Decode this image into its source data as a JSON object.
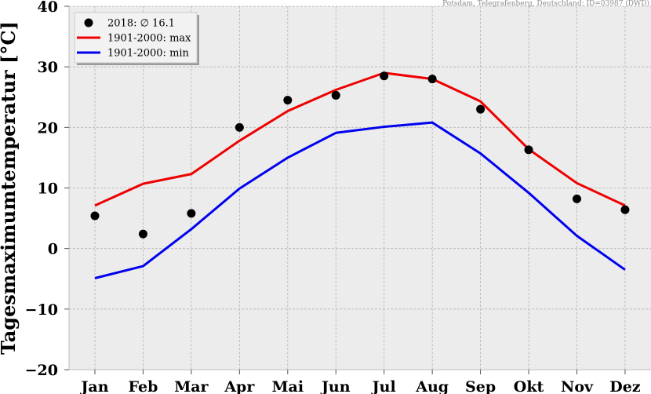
{
  "source_note": "Potsdam, Telegrafenberg, Deutschland: ID=03987 (DWD)",
  "colors": {
    "background": "#ececec",
    "max_line": "#ee0000",
    "min_line": "#0000ee",
    "points": "#000000",
    "grid": "#b4b4b4"
  },
  "chart_data": {
    "type": "line",
    "ylabel": "Tagesmaximumtemperatur [°C]",
    "categories": [
      "Jan",
      "Feb",
      "Mar",
      "Apr",
      "Mai",
      "Jun",
      "Jul",
      "Aug",
      "Sep",
      "Okt",
      "Nov",
      "Dez"
    ],
    "ylim": [
      -20,
      40
    ],
    "yticks": [
      40,
      30,
      20,
      10,
      0,
      -10,
      -20
    ],
    "ytick_labels": [
      "40",
      "30",
      "20",
      "10",
      "0",
      "−10",
      "−20"
    ],
    "grid": true,
    "legend_position": "top-left",
    "series": [
      {
        "name": "2018: ∅ 16.1",
        "kind": "scatter",
        "color": "#000000",
        "values": [
          5.4,
          2.4,
          5.8,
          20.0,
          24.5,
          25.3,
          28.5,
          28.0,
          23.0,
          16.3,
          8.2,
          6.4
        ]
      },
      {
        "name": "1901-2000: max",
        "kind": "line",
        "color": "#ee0000",
        "values": [
          7.1,
          10.7,
          12.3,
          17.8,
          22.7,
          26.2,
          29.0,
          28.0,
          24.3,
          16.4,
          10.8,
          7.1
        ]
      },
      {
        "name": "1901-2000: min",
        "kind": "line",
        "color": "#0000ee",
        "values": [
          -4.9,
          -2.9,
          3.2,
          9.9,
          15.0,
          19.1,
          20.1,
          20.8,
          15.7,
          9.2,
          2.1,
          -3.5
        ]
      }
    ]
  }
}
